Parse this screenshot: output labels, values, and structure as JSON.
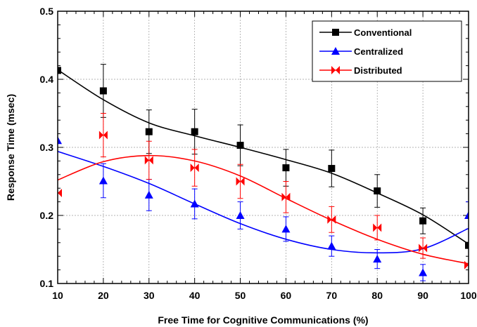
{
  "chart_data": {
    "type": "scatter",
    "xlabel": "Free Time for Cognitive Communications (%)",
    "ylabel": "Response Time (msec)",
    "xlim": [
      10,
      100
    ],
    "ylim": [
      0.1,
      0.5
    ],
    "x_ticks": [
      "10",
      "20",
      "30",
      "40",
      "50",
      "60",
      "70",
      "80",
      "90",
      "100"
    ],
    "y_ticks": [
      "0.1",
      "0.2",
      "0.3",
      "0.4",
      "0.5"
    ],
    "grid": true,
    "legend_position": "top-right",
    "series": [
      {
        "name": "Conventional",
        "color": "#000000",
        "marker": "square",
        "x": [
          10,
          20,
          30,
          40,
          50,
          60,
          70,
          80,
          90,
          100
        ],
        "y": [
          0.413,
          0.383,
          0.323,
          0.323,
          0.303,
          0.27,
          0.269,
          0.236,
          0.192,
          0.156
        ],
        "err": [
          0,
          0.039,
          0.032,
          0.033,
          0.03,
          0.027,
          0.027,
          0.024,
          0.019,
          0
        ],
        "fit_y": [
          0.414,
          0.37,
          0.336,
          0.317,
          0.3,
          0.282,
          0.262,
          0.233,
          0.201,
          0.158
        ]
      },
      {
        "name": "Centralized",
        "color": "#0000ff",
        "marker": "triangle",
        "x": [
          10,
          20,
          30,
          40,
          50,
          60,
          70,
          80,
          90,
          100
        ],
        "y": [
          0.31,
          0.251,
          0.23,
          0.217,
          0.2,
          0.18,
          0.155,
          0.136,
          0.116,
          0.2
        ],
        "err": [
          0,
          0.025,
          0.023,
          0.022,
          0.02,
          0.018,
          0.015,
          0.014,
          0.012,
          0.02
        ],
        "fit_y": [
          0.294,
          0.272,
          0.247,
          0.217,
          0.188,
          0.165,
          0.15,
          0.145,
          0.151,
          0.181
        ]
      },
      {
        "name": "Distributed",
        "color": "#ff0000",
        "marker": "bowtie",
        "x": [
          10,
          20,
          30,
          40,
          50,
          60,
          70,
          80,
          90,
          100
        ],
        "y": [
          0.233,
          0.318,
          0.281,
          0.27,
          0.25,
          0.227,
          0.194,
          0.182,
          0.152,
          0.127
        ],
        "err": [
          0,
          0.032,
          0.028,
          0.027,
          0.025,
          0.023,
          0.019,
          0.018,
          0.015,
          0
        ],
        "fit_y": [
          0.252,
          0.279,
          0.288,
          0.28,
          0.258,
          0.225,
          0.193,
          0.165,
          0.143,
          0.129
        ]
      }
    ]
  }
}
